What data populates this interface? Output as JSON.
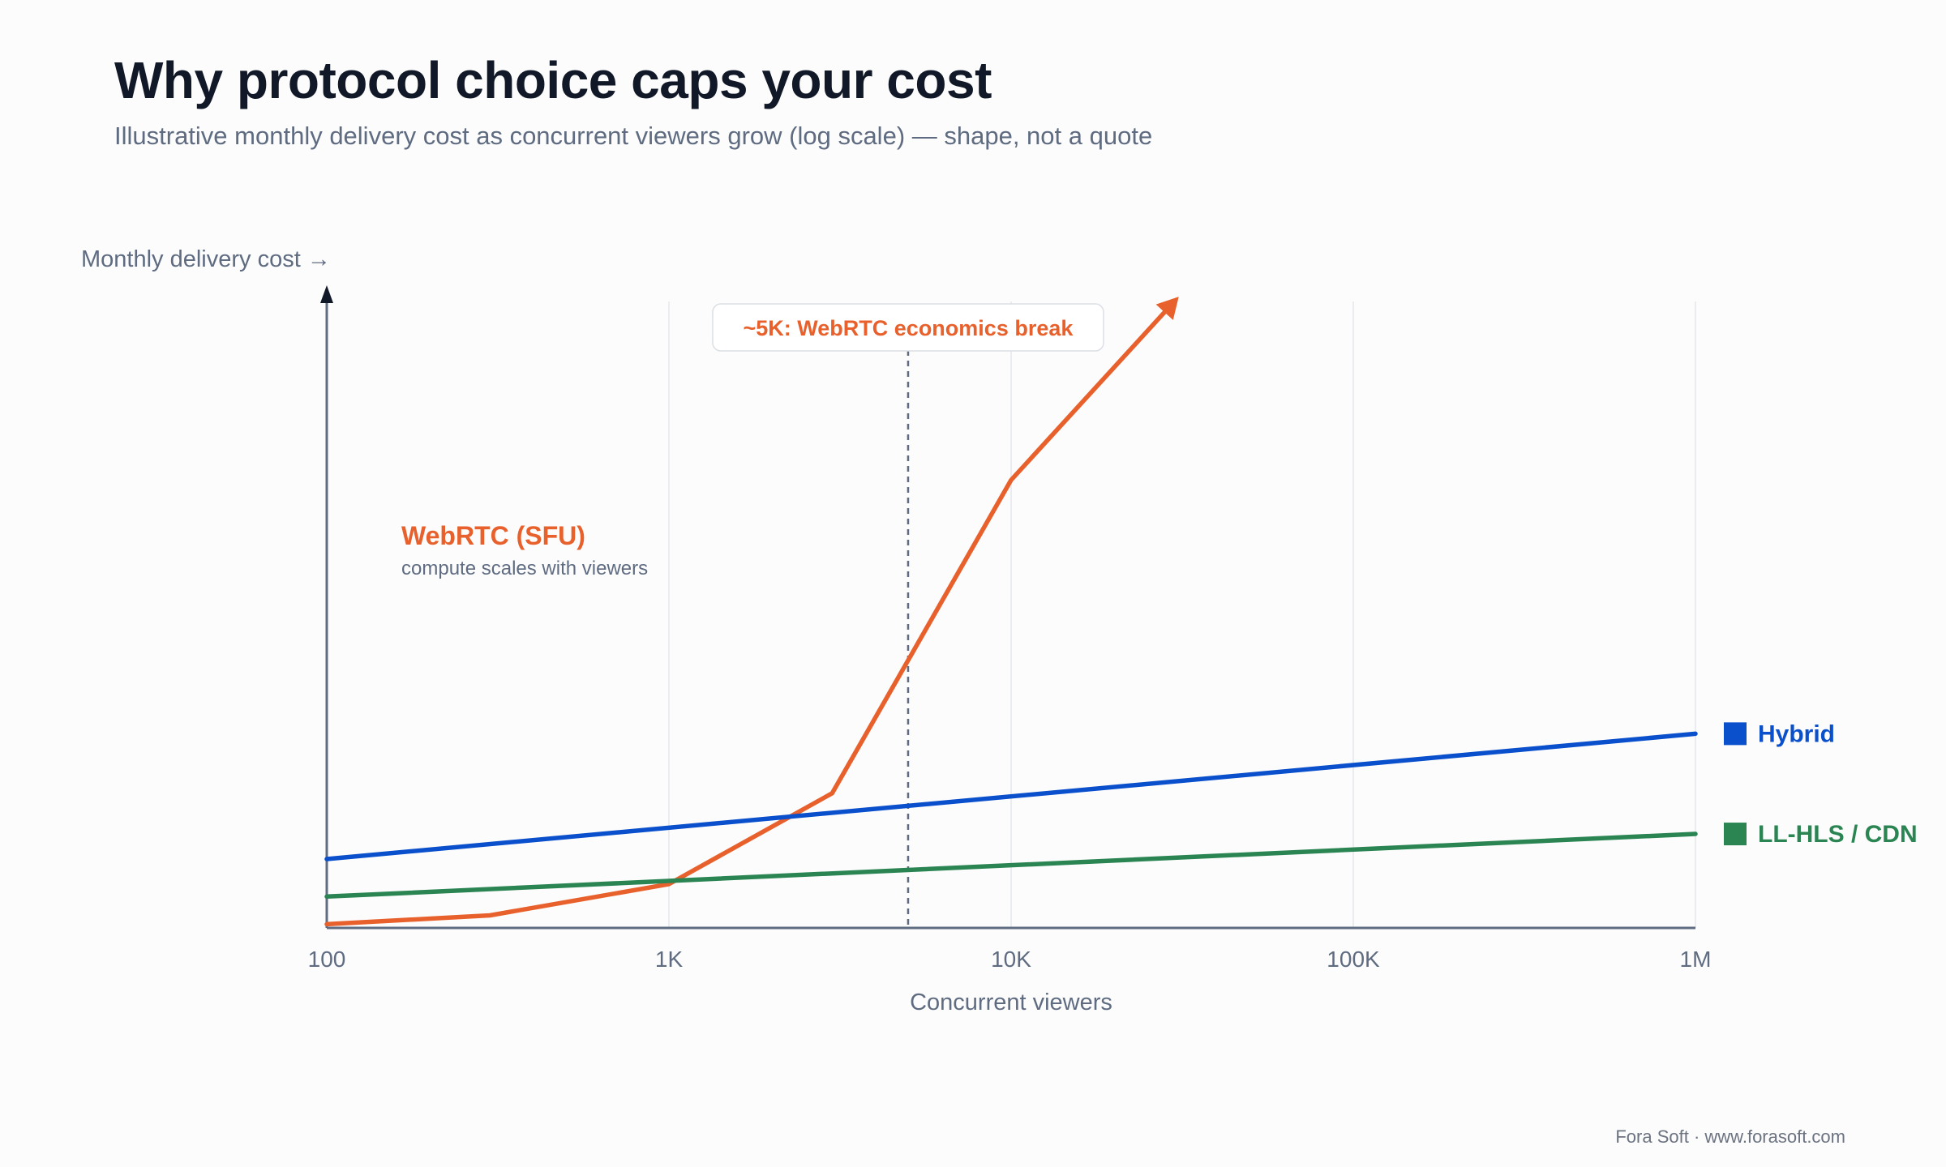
{
  "page": {
    "title": "Why protocol choice caps your cost",
    "subtitle": "Illustrative monthly delivery cost as concurrent viewers grow (log scale) — shape, not a quote",
    "footer": "Fora Soft · www.forasoft.com"
  },
  "chart_data": {
    "type": "line",
    "xlabel": "Concurrent viewers",
    "ylabel": "Monthly delivery cost →",
    "x_scale": "log",
    "xlim": [
      100,
      1000000
    ],
    "ylim": [
      0,
      100
    ],
    "y_ticks_shown": false,
    "grid": "vertical",
    "x_ticks": [
      {
        "value": 100,
        "label": "100"
      },
      {
        "value": 1000,
        "label": "1K"
      },
      {
        "value": 10000,
        "label": "10K"
      },
      {
        "value": 100000,
        "label": "100K"
      },
      {
        "value": 1000000,
        "label": "1M"
      }
    ],
    "series": [
      {
        "name": "WebRTC (SFU)",
        "note": "compute scales with viewers",
        "color": "#e8612c",
        "label_placement": "inline-left",
        "arrow_end": true,
        "points": [
          [
            100,
            0.6
          ],
          [
            300,
            2
          ],
          [
            1000,
            7
          ],
          [
            3000,
            21.5
          ],
          [
            10000,
            71.5
          ],
          [
            30000,
            100
          ]
        ]
      },
      {
        "name": "Hybrid",
        "color": "#0a4fcb",
        "label_placement": "right-end",
        "points": [
          [
            100,
            11
          ],
          [
            1000000,
            31
          ]
        ]
      },
      {
        "name": "LL-HLS / CDN",
        "color": "#2a8553",
        "label_placement": "right-end",
        "points": [
          [
            100,
            5
          ],
          [
            1000000,
            15
          ]
        ]
      }
    ],
    "annotations": [
      {
        "type": "vline",
        "x": 5000,
        "label": "~5K: WebRTC economics break",
        "color": "#e8612c",
        "line_color": "#5e6b80"
      }
    ]
  }
}
